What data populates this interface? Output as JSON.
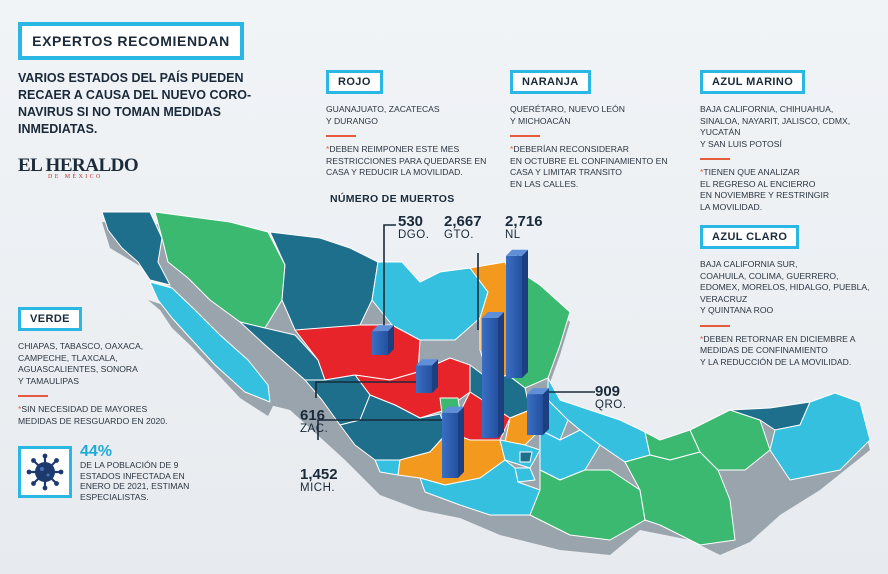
{
  "header": {
    "title": "EXPERTOS RECOMIENDAN"
  },
  "intro": "VARIOS ESTADOS DEL PAÍS PUEDEN RECAER A CAUSA DEL NUEVO CORO-NAVIRUS SI NO TOMAN MEDIDAS INMEDIATAS.",
  "logo": {
    "main": "EL HERALDO",
    "sub": "DE MÉXICO"
  },
  "categories": {
    "rojo": {
      "label": "ROJO",
      "states": "GUANAJUATO, ZACATECAS\nY DURANGO",
      "note_marker": "*",
      "note": "DEBEN REIMPONER ESTE MES\nRESTRICCIONES PARA QUEDARSE EN\nCASA Y REDUCIR LA MOVILIDAD."
    },
    "naranja": {
      "label": "NARANJA",
      "states": "QUERÉTARO, NUEVO LEÓN\nY MICHOACÁN",
      "note_marker": "*",
      "note": "DEBERÍAN RECONSIDERAR\nEN OCTUBRE EL CONFINAMIENTO EN\nCASA Y LIMITAR TRANSITO\nEN LAS CALLES."
    },
    "azul_marino": {
      "label": "AZUL MARINO",
      "states": "BAJA CALIFORNIA, CHIHUAHUA,\nSINALOA, NAYARIT, JALISCO, CDMX,\nYUCATÁN\nY SAN LUIS POTOSÍ",
      "note_marker": "*",
      "note": "TIENEN QUE ANALIZAR\nEL REGRESO AL ENCIERRO\nEN NOVIEMBRE Y RESTRINGIR\nLA MOVILIDAD."
    },
    "azul_claro": {
      "label": "AZUL CLARO",
      "states": "BAJA CALIFORNIA SUR,\nCOAHUILA, COLIMA, GUERRERO,\nEDOMEX, MORELOS, HIDALGO, PUEBLA,\nVERACRUZ\nY QUINTANA ROO",
      "note_marker": "*",
      "note": "DEBEN RETORNAR EN DICIEMBRE A\nMEDIDAS DE CONFINAMIENTO\nY LA REDUCCIÓN DE LA MOVILIDAD."
    },
    "verde": {
      "label": "VERDE",
      "states": "CHIAPAS, TABASCO, OAXACA,\nCAMPECHE, TLAXCALA,\nAGUASCALIENTES, SONORA\nY TAMAULIPAS",
      "note_marker": "*",
      "note": "SIN NECESIDAD DE MAYORES\nMEDIDAS DE RESGUARDO EN 2020."
    }
  },
  "deaths": {
    "title": "NÚMERO DE MUERTOS",
    "items": [
      {
        "value": "530",
        "state": "DGO."
      },
      {
        "value": "2,667",
        "state": "GTO."
      },
      {
        "value": "2,716",
        "state": "NL"
      },
      {
        "value": "909",
        "state": "QRO."
      },
      {
        "value": "616",
        "state": "ZAC."
      },
      {
        "value": "1,452",
        "state": "MICH."
      }
    ]
  },
  "stat": {
    "value": "44%",
    "text": "DE LA POBLACIÓN DE 9\nESTADOS INFECTADA EN\nENERO DE 2021, ESTIMAN\nESPECIALISTAS.",
    "icon": "virus-icon"
  },
  "colors": {
    "accent": "#2ab7e3",
    "red": "#e8242b",
    "orange": "#f39a1e",
    "navy": "#1d6f8c",
    "light_blue": "#35c0e0",
    "green": "#3cb970",
    "bar": "#2a5db0"
  }
}
